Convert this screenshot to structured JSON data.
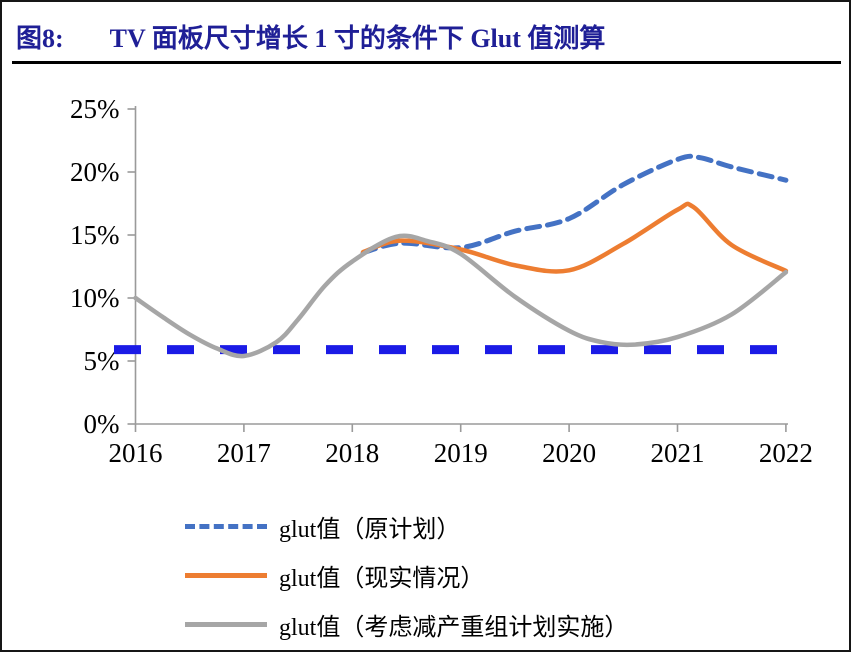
{
  "header": {
    "figure_label": "图8:",
    "title": "TV 面板尺寸增长 1 寸的条件下 Glut 值测算",
    "title_color": "#1f1f96"
  },
  "chart_data": {
    "type": "line",
    "title": "TV 面板尺寸增长 1 寸的条件下 Glut 值测算",
    "xlabel": "",
    "ylabel": "",
    "xlim": [
      2016,
      2022
    ],
    "ylim": [
      0,
      25
    ],
    "grid": false,
    "legend_position": "bottom-left",
    "axis_color": "#9a9a9a",
    "tick_label_color": "#000000",
    "x_ticks": [
      {
        "label": "2016",
        "value": 2016
      },
      {
        "label": "2017",
        "value": 2017
      },
      {
        "label": "2018",
        "value": 2018
      },
      {
        "label": "2019",
        "value": 2019
      },
      {
        "label": "2020",
        "value": 2020
      },
      {
        "label": "2021",
        "value": 2021
      },
      {
        "label": "2022",
        "value": 2022
      }
    ],
    "y_ticks": [
      {
        "label": "25%",
        "value": 25
      },
      {
        "label": "20%",
        "value": 20
      },
      {
        "label": "15%",
        "value": 15
      },
      {
        "label": "10%",
        "value": 10
      },
      {
        "label": "5%",
        "value": 5
      },
      {
        "label": "0%",
        "value": 0
      }
    ],
    "series": [
      {
        "name": "glut值（原计划）",
        "color": "#4472C4",
        "style": "dashed",
        "width": 5,
        "x": [
          2018.1,
          2018.45,
          2019,
          2019.5,
          2020,
          2020.5,
          2021,
          2021.2,
          2021.5,
          2022
        ],
        "y": [
          13.6,
          14.35,
          14.0,
          15.3,
          16.3,
          19.0,
          21.0,
          21.15,
          20.4,
          19.35
        ]
      },
      {
        "name": "glut值（现实情况）",
        "color": "#ED7D31",
        "style": "solid",
        "width": 4.5,
        "x": [
          2018.1,
          2018.45,
          2019,
          2019.5,
          2020,
          2020.5,
          2021,
          2021.15,
          2021.5,
          2022
        ],
        "y": [
          13.65,
          14.55,
          13.85,
          12.6,
          12.2,
          14.3,
          17.0,
          17.2,
          14.2,
          12.15
        ]
      },
      {
        "name": "glut值（考虑减产重组计划实施）",
        "color": "#A6A6A6",
        "style": "solid",
        "width": 4.5,
        "x": [
          2016,
          2016.25,
          2016.5,
          2016.75,
          2017,
          2017.3,
          2017.5,
          2017.75,
          2018,
          2018.4,
          2018.7,
          2019,
          2019.5,
          2020,
          2020.3,
          2020.6,
          2021,
          2021.5,
          2022
        ],
        "y": [
          10.0,
          8.5,
          7.1,
          6.0,
          5.4,
          6.5,
          8.3,
          11.0,
          12.9,
          14.85,
          14.5,
          13.5,
          10.1,
          7.4,
          6.5,
          6.3,
          6.9,
          8.7,
          12.05
        ]
      }
    ],
    "threshold_line": {
      "value": 5.9,
      "color": "#1b1be6",
      "style": "dashed",
      "width": 9
    }
  }
}
